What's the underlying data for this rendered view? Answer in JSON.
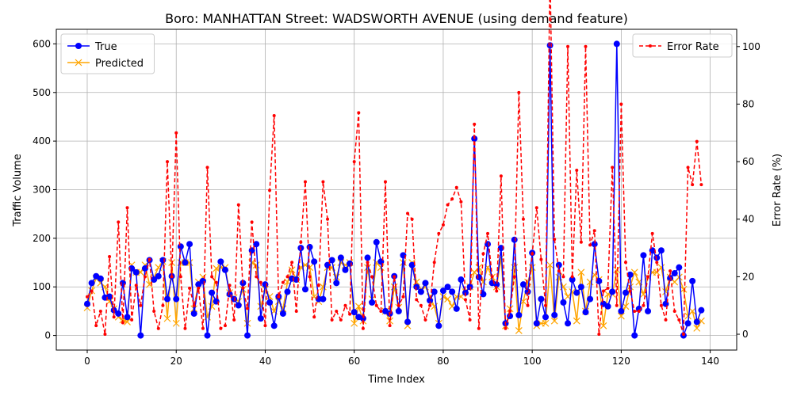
{
  "chart_data": {
    "type": "line",
    "title": "Boro: MANHATTAN Street: WADSWORTH AVENUE (using demand feature)",
    "xlabel": "Time Index",
    "ylabel": "Traffic Volume",
    "y2label": "Error Rate (%)",
    "xlim": [
      -6.95,
      145.95
    ],
    "ylim": [
      -30,
      630
    ],
    "y2lim": [
      -5.5,
      106
    ],
    "xticks": [
      0,
      20,
      40,
      60,
      80,
      100,
      120,
      140
    ],
    "yticks": [
      0,
      100,
      200,
      300,
      400,
      500,
      600
    ],
    "y2ticks": [
      0,
      20,
      40,
      60,
      80,
      100
    ],
    "grid": true,
    "legend_left_position": "top-left",
    "legend_right_position": "top-right",
    "series": [
      {
        "name": "True",
        "axis": "left",
        "color": "#0000ff",
        "marker": "circle",
        "style": "solid",
        "values": [
          65,
          108,
          122,
          117,
          78,
          80,
          52,
          45,
          108,
          38,
          138,
          130,
          0,
          138,
          155,
          115,
          122,
          155,
          75,
          122,
          75,
          183,
          150,
          188,
          45,
          105,
          112,
          0,
          88,
          70,
          152,
          135,
          85,
          75,
          62,
          108,
          0,
          175,
          188,
          35,
          105,
          68,
          20,
          80,
          45,
          90,
          117,
          115,
          180,
          95,
          182,
          152,
          75,
          75,
          145,
          155,
          108,
          160,
          135,
          148,
          48,
          38,
          35,
          160,
          68,
          192,
          152,
          50,
          45,
          122,
          50,
          165,
          28,
          145,
          100,
          90,
          108,
          72,
          90,
          20,
          92,
          100,
          90,
          55,
          115,
          88,
          100,
          405,
          120,
          85,
          188,
          108,
          105,
          180,
          25,
          40,
          197,
          42,
          105,
          90,
          170,
          25,
          75,
          38,
          597,
          42,
          145,
          68,
          25,
          115,
          88,
          100,
          48,
          75,
          188,
          112,
          65,
          60,
          90,
          600,
          50,
          88,
          125,
          0,
          55,
          165,
          50,
          175,
          160,
          175,
          65,
          118,
          128,
          140,
          0,
          25,
          112,
          28,
          52
        ]
      },
      {
        "name": "Predicted",
        "axis": "left",
        "color": "#ffa500",
        "marker": "x",
        "style": "solid",
        "values": [
          57,
          92,
          118,
          108,
          100,
          70,
          55,
          38,
          32,
          28,
          145,
          130,
          130,
          145,
          105,
          120,
          140,
          152,
          35,
          150,
          25,
          150,
          150,
          150,
          55,
          110,
          120,
          38,
          60,
          138,
          140,
          140,
          88,
          78,
          70,
          95,
          25,
          150,
          145,
          60,
          95,
          80,
          50,
          70,
          55,
          110,
          135,
          115,
          140,
          145,
          140,
          80,
          70,
          100,
          140,
          140,
          120,
          150,
          145,
          150,
          25,
          60,
          30,
          140,
          75,
          150,
          140,
          50,
          30,
          100,
          58,
          150,
          20,
          150,
          110,
          95,
          100,
          80,
          60,
          25,
          80,
          75,
          60,
          80,
          80,
          90,
          100,
          130,
          140,
          110,
          140,
          120,
          100,
          160,
          20,
          55,
          140,
          10,
          70,
          110,
          140,
          20,
          25,
          25,
          145,
          30,
          120,
          100,
          80,
          90,
          30,
          130,
          50,
          110,
          125,
          115,
          20,
          85,
          85,
          135,
          40,
          60,
          100,
          130,
          110,
          85,
          120,
          130,
          130,
          140,
          90,
          120,
          110,
          120,
          95,
          40,
          50,
          15,
          30
        ]
      },
      {
        "name": "Error Rate",
        "axis": "right",
        "color": "#ff0000",
        "marker": "dot",
        "style": "dashed",
        "values": [
          13,
          15,
          3,
          8,
          0,
          27,
          6,
          39,
          4,
          44,
          5,
          17,
          10,
          20,
          26,
          8,
          2,
          10,
          60,
          20,
          70,
          20,
          2,
          16,
          10,
          16,
          2,
          58,
          20,
          18,
          2,
          3,
          17,
          5,
          45,
          16,
          9,
          39,
          20,
          18,
          3,
          50,
          76,
          13,
          18,
          20,
          25,
          8,
          32,
          53,
          20,
          6,
          17,
          53,
          40,
          5,
          8,
          5,
          10,
          7,
          60,
          77,
          2,
          25,
          20,
          10,
          8,
          53,
          3,
          20,
          10,
          13,
          42,
          40,
          12,
          10,
          5,
          10,
          25,
          35,
          38,
          45,
          47,
          51,
          46,
          12,
          5,
          73,
          2,
          28,
          35,
          20,
          15,
          55,
          2,
          8,
          20,
          84,
          40,
          10,
          28,
          44,
          26,
          10,
          126,
          33,
          22,
          20,
          100,
          20,
          57,
          32,
          100,
          31,
          36,
          0,
          15,
          16,
          58,
          10,
          80,
          25,
          15,
          8,
          8,
          10,
          20,
          35,
          25,
          10,
          5,
          22,
          8,
          5,
          0,
          58,
          52,
          67,
          52
        ]
      }
    ]
  }
}
